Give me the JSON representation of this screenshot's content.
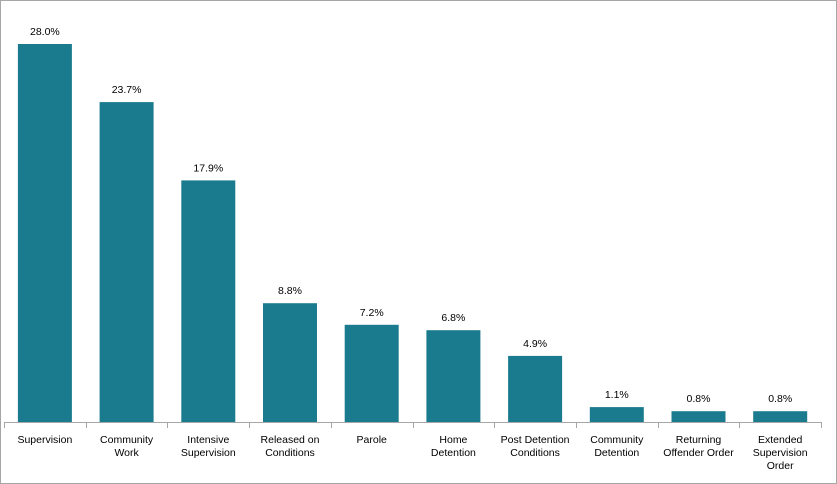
{
  "chart_data": {
    "type": "bar",
    "categories": [
      [
        "Supervision"
      ],
      [
        "Community",
        "Work"
      ],
      [
        "Intensive",
        "Supervision"
      ],
      [
        "Released on",
        "Conditions"
      ],
      [
        "Parole"
      ],
      [
        "Home",
        "Detention"
      ],
      [
        "Post Detention",
        "Conditions"
      ],
      [
        "Community",
        "Detention"
      ],
      [
        "Returning",
        "Offender Order"
      ],
      [
        "Extended",
        "Supervision",
        "Order"
      ]
    ],
    "values": [
      28.0,
      23.7,
      17.9,
      8.8,
      7.2,
      6.8,
      4.9,
      1.1,
      0.8,
      0.8
    ],
    "data_labels": [
      "28.0%",
      "23.7%",
      "17.9%",
      "8.8%",
      "7.2%",
      "6.8%",
      "4.9%",
      "1.1%",
      "0.8%",
      "0.8%"
    ],
    "title": "",
    "xlabel": "",
    "ylabel": "",
    "ylim": [
      0,
      28.0
    ],
    "grid": false,
    "legend": "none",
    "colors": {
      "bar": "#1b7b8e",
      "axis": "#a6a6a6",
      "text": "#000000"
    }
  }
}
